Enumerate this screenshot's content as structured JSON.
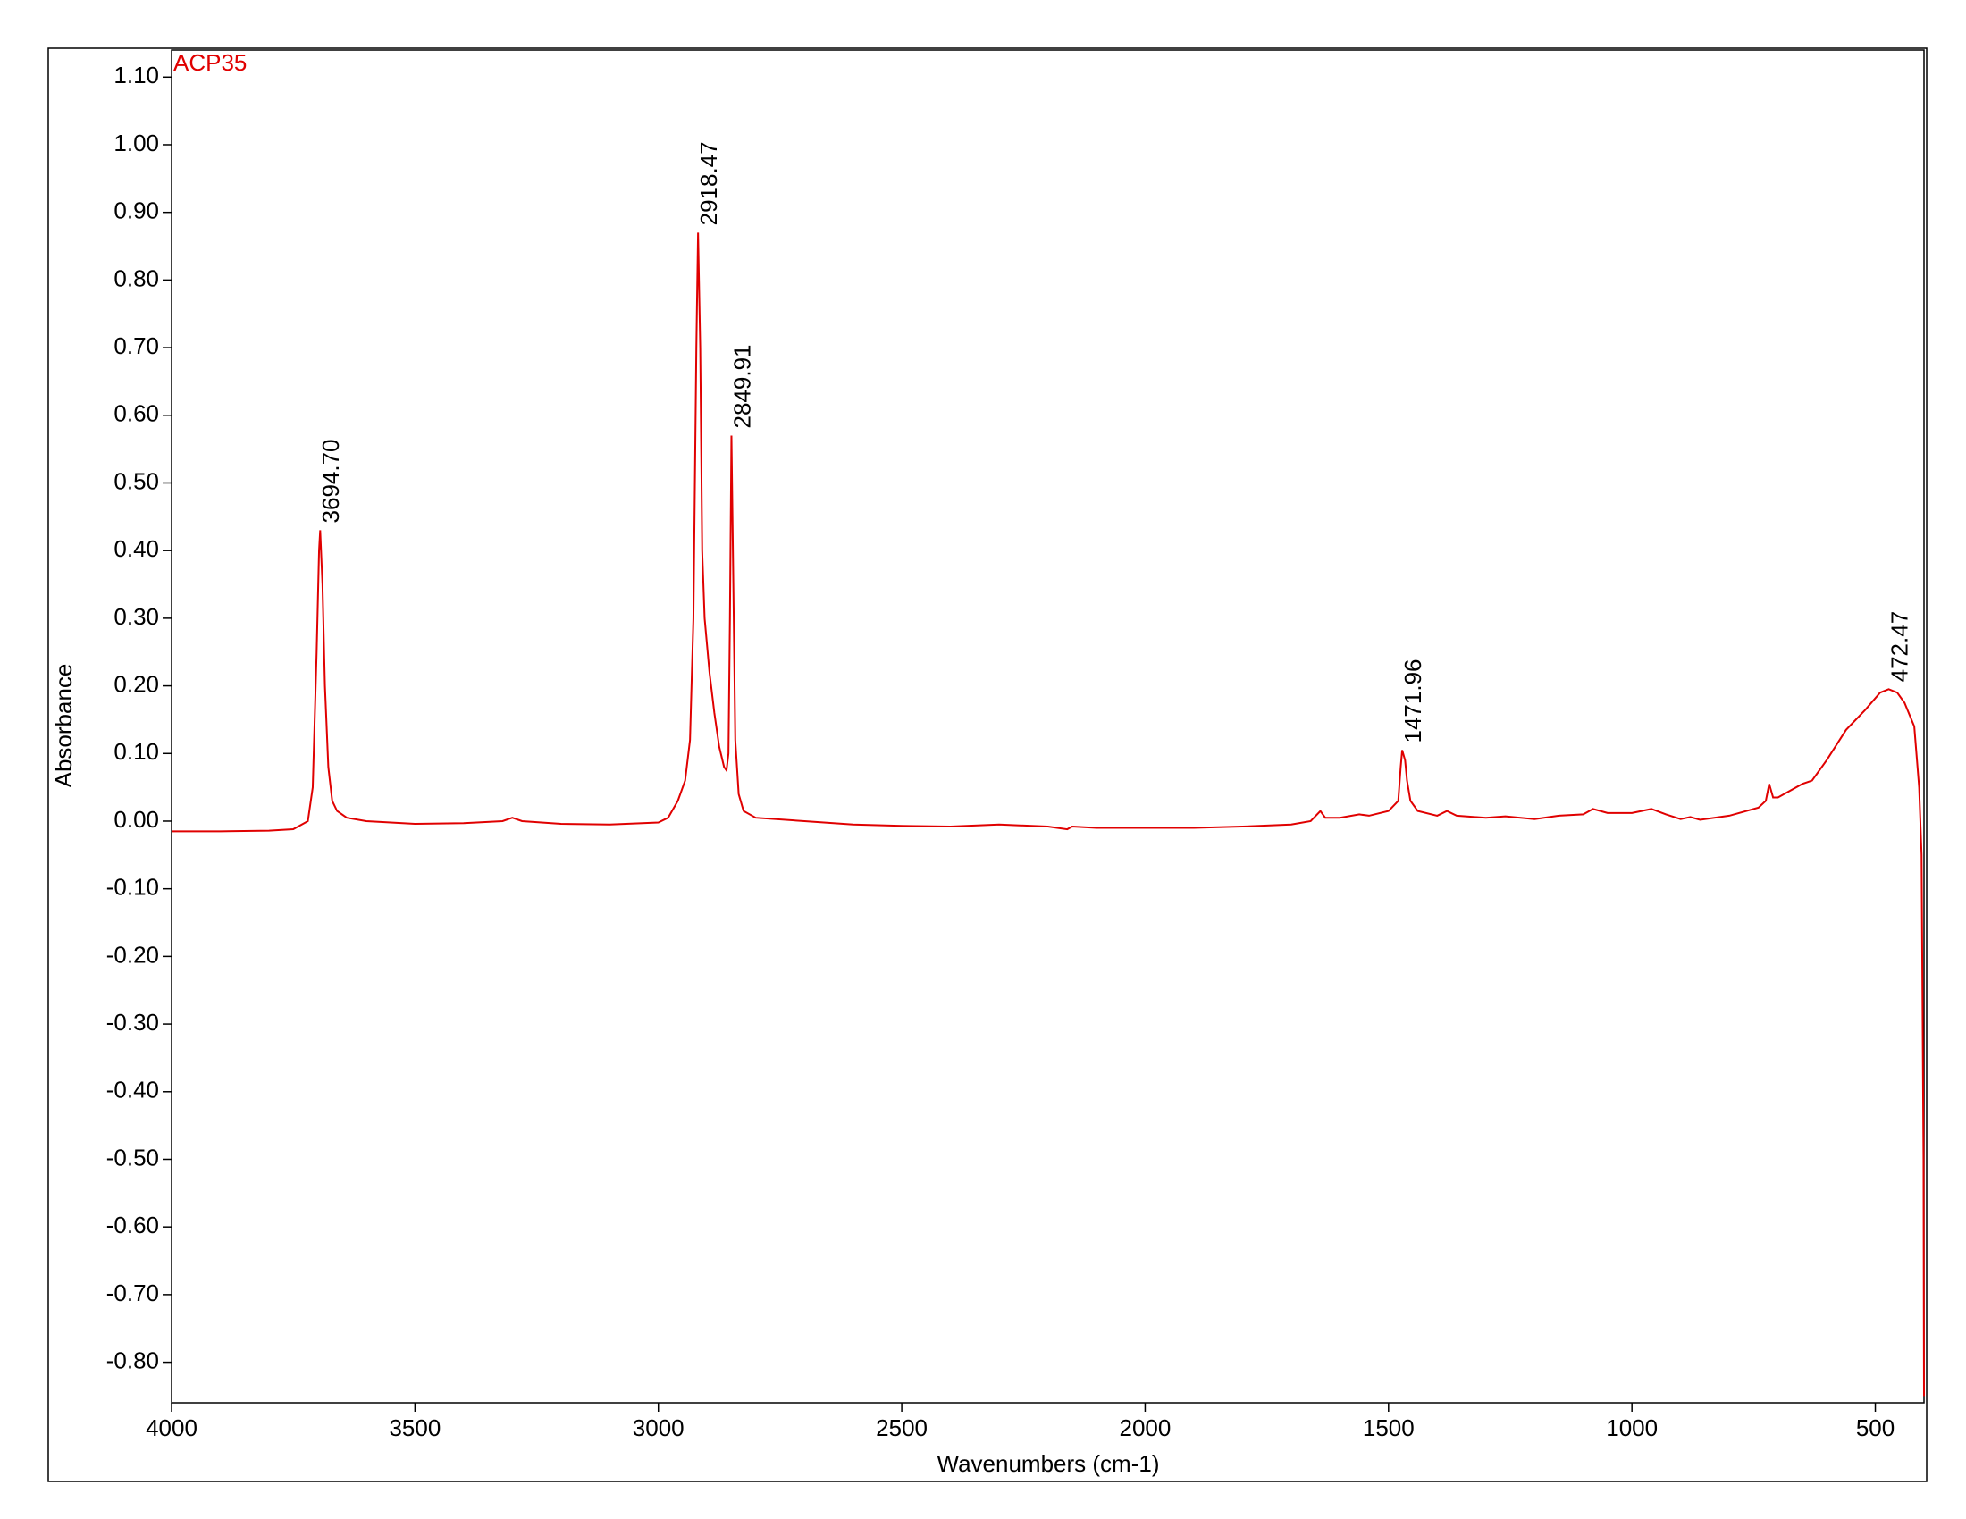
{
  "chart_data": {
    "type": "line",
    "xlabel": "Wavenumbers (cm-1)",
    "ylabel": "Absorbance",
    "xlim": [
      4000,
      400
    ],
    "ylim": [
      -0.86,
      1.14
    ],
    "xticks": [
      4000,
      3500,
      3000,
      2500,
      2000,
      1500,
      1000,
      500
    ],
    "yticks": [
      {
        "value": 1.1,
        "label": "1.10"
      },
      {
        "value": 1.0,
        "label": "1.00"
      },
      {
        "value": 0.9,
        "label": "0.90"
      },
      {
        "value": 0.8,
        "label": "0.80"
      },
      {
        "value": 0.7,
        "label": "0.70"
      },
      {
        "value": 0.6,
        "label": "0.60"
      },
      {
        "value": 0.5,
        "label": "0.50"
      },
      {
        "value": 0.4,
        "label": "0.40"
      },
      {
        "value": 0.3,
        "label": "0.30"
      },
      {
        "value": 0.2,
        "label": "0.20"
      },
      {
        "value": 0.1,
        "label": "0.10"
      },
      {
        "value": 0,
        "label": "0.00"
      },
      {
        "value": -0.1,
        "label": "-0.10"
      },
      {
        "value": -0.2,
        "label": "-0.20"
      },
      {
        "value": -0.3,
        "label": "-0.30"
      },
      {
        "value": -0.4,
        "label": "-0.40"
      },
      {
        "value": -0.5,
        "label": "-0.50"
      },
      {
        "value": -0.6,
        "label": "-0.60"
      },
      {
        "value": -0.7,
        "label": "-0.70"
      },
      {
        "value": -0.8,
        "label": "-0.80"
      }
    ],
    "x": [
      4000,
      3900,
      3800,
      3750,
      3720,
      3710,
      3702,
      3697,
      3694.7,
      3690,
      3685,
      3678,
      3670,
      3660,
      3640,
      3600,
      3500,
      3400,
      3320,
      3300,
      3280,
      3200,
      3100,
      3000,
      2980,
      2960,
      2945,
      2935,
      2928,
      2922,
      2918.47,
      2914,
      2910,
      2905,
      2895,
      2885,
      2875,
      2865,
      2860,
      2856,
      2853,
      2849.91,
      2846,
      2842,
      2835,
      2825,
      2800,
      2700,
      2600,
      2500,
      2400,
      2300,
      2200,
      2160,
      2150,
      2100,
      2000,
      1900,
      1800,
      1700,
      1660,
      1640,
      1630,
      1600,
      1560,
      1540,
      1500,
      1480,
      1475,
      1471.96,
      1466,
      1462,
      1455,
      1440,
      1400,
      1380,
      1360,
      1300,
      1260,
      1200,
      1150,
      1100,
      1080,
      1050,
      1000,
      960,
      930,
      900,
      880,
      860,
      800,
      740,
      725,
      718,
      710,
      700,
      650,
      630,
      600,
      560,
      520,
      490,
      472.47,
      455,
      440,
      420,
      410,
      405,
      401,
      400
    ],
    "series": [
      {
        "name": "ACP35",
        "color": "#e00000",
        "values": [
          -0.015,
          -0.015,
          -0.014,
          -0.012,
          0.0,
          0.05,
          0.25,
          0.4,
          0.43,
          0.35,
          0.2,
          0.08,
          0.03,
          0.015,
          0.005,
          0.0,
          -0.004,
          -0.003,
          0.0,
          0.005,
          0.0,
          -0.004,
          -0.005,
          -0.002,
          0.005,
          0.03,
          0.06,
          0.12,
          0.3,
          0.7,
          0.87,
          0.7,
          0.4,
          0.3,
          0.22,
          0.16,
          0.11,
          0.08,
          0.075,
          0.1,
          0.3,
          0.57,
          0.35,
          0.12,
          0.04,
          0.015,
          0.005,
          0.0,
          -0.005,
          -0.007,
          -0.008,
          -0.005,
          -0.008,
          -0.012,
          -0.008,
          -0.01,
          -0.01,
          -0.01,
          -0.008,
          -0.005,
          0.0,
          0.015,
          0.005,
          0.005,
          0.01,
          0.008,
          0.015,
          0.03,
          0.08,
          0.105,
          0.09,
          0.06,
          0.03,
          0.015,
          0.008,
          0.015,
          0.008,
          0.005,
          0.007,
          0.003,
          0.008,
          0.01,
          0.018,
          0.012,
          0.012,
          0.018,
          0.01,
          0.003,
          0.006,
          0.002,
          0.008,
          0.02,
          0.03,
          0.055,
          0.035,
          0.035,
          0.055,
          0.06,
          0.09,
          0.135,
          0.165,
          0.19,
          0.195,
          0.19,
          0.175,
          0.14,
          0.05,
          -0.05,
          -0.5,
          -0.85
        ]
      }
    ],
    "annotations": [
      {
        "x": 3694.7,
        "y": 0.43,
        "label": "3694.70"
      },
      {
        "x": 2918.47,
        "y": 0.87,
        "label": "2918.47"
      },
      {
        "x": 2849.91,
        "y": 0.57,
        "label": "2849.91"
      },
      {
        "x": 1471.96,
        "y": 0.105,
        "label": "1471.96"
      },
      {
        "x": 472.47,
        "y": 0.195,
        "label": "472.47"
      }
    ]
  }
}
